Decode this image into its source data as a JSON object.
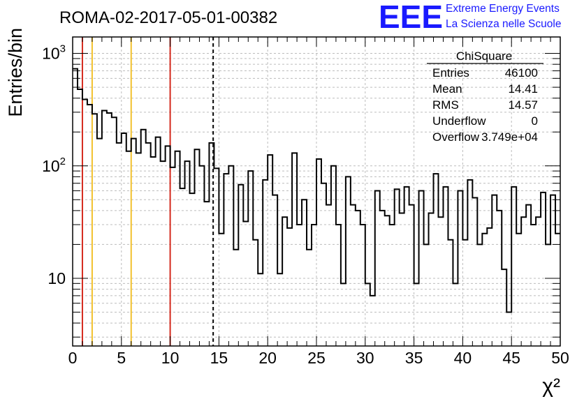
{
  "header": {
    "run_title": "ROMA-02-2017-05-01-00382",
    "logo_text": "EEE",
    "logo_line1": "Extreme Energy Events",
    "logo_line2": "La Scienza nelle Scuole"
  },
  "stats": {
    "title": "ChiSquare",
    "rows": [
      {
        "label": "Entries",
        "value": "46100"
      },
      {
        "label": "Mean",
        "value": "14.41"
      },
      {
        "label": "RMS",
        "value": "14.57"
      },
      {
        "label": "Underflow",
        "value": "0"
      },
      {
        "label": "Overflow",
        "value": "3.749e+04"
      }
    ]
  },
  "chart_data": {
    "type": "histogram",
    "xlabel": "χ²",
    "ylabel": "Entries/bin",
    "xlim": [
      0,
      50
    ],
    "ylim": [
      2.5,
      1400
    ],
    "yscale": "log",
    "grid": true,
    "bin_width": 0.5,
    "x_ticks": [
      "0",
      "5",
      "10",
      "15",
      "20",
      "25",
      "30",
      "35",
      "40",
      "45",
      "50"
    ],
    "y_ticks": [
      {
        "value": 10,
        "label": "10"
      },
      {
        "value": 100,
        "label": "10²"
      },
      {
        "value": 1000,
        "label": "10³"
      }
    ],
    "values": [
      730,
      480,
      390,
      350,
      290,
      175,
      310,
      295,
      270,
      160,
      195,
      135,
      175,
      130,
      210,
      160,
      120,
      180,
      110,
      150,
      97,
      135,
      63,
      110,
      57,
      140,
      100,
      48,
      160,
      95,
      25,
      85,
      100,
      18,
      68,
      32,
      90,
      22,
      11,
      75,
      125,
      55,
      11,
      35,
      28,
      130,
      30,
      50,
      18,
      30,
      115,
      70,
      45,
      100,
      30,
      9,
      80,
      45,
      40,
      30,
      9,
      7,
      60,
      40,
      36,
      30,
      62,
      38,
      65,
      45,
      9,
      60,
      20,
      38,
      85,
      35,
      65,
      22,
      9,
      60,
      22,
      75,
      52,
      20,
      25,
      28,
      55,
      40,
      12,
      5,
      65,
      25,
      35,
      45,
      30,
      35,
      58,
      20,
      55,
      25
    ],
    "lines": [
      {
        "x": 1.0,
        "color": "#d42a1e",
        "style": "solid"
      },
      {
        "x": 2.0,
        "color": "#f2c12e",
        "style": "solid"
      },
      {
        "x": 6.0,
        "color": "#f2c12e",
        "style": "solid"
      },
      {
        "x": 10.0,
        "color": "#d42a1e",
        "style": "solid"
      },
      {
        "x": 14.41,
        "color": "#000000",
        "style": "dashed"
      }
    ]
  }
}
